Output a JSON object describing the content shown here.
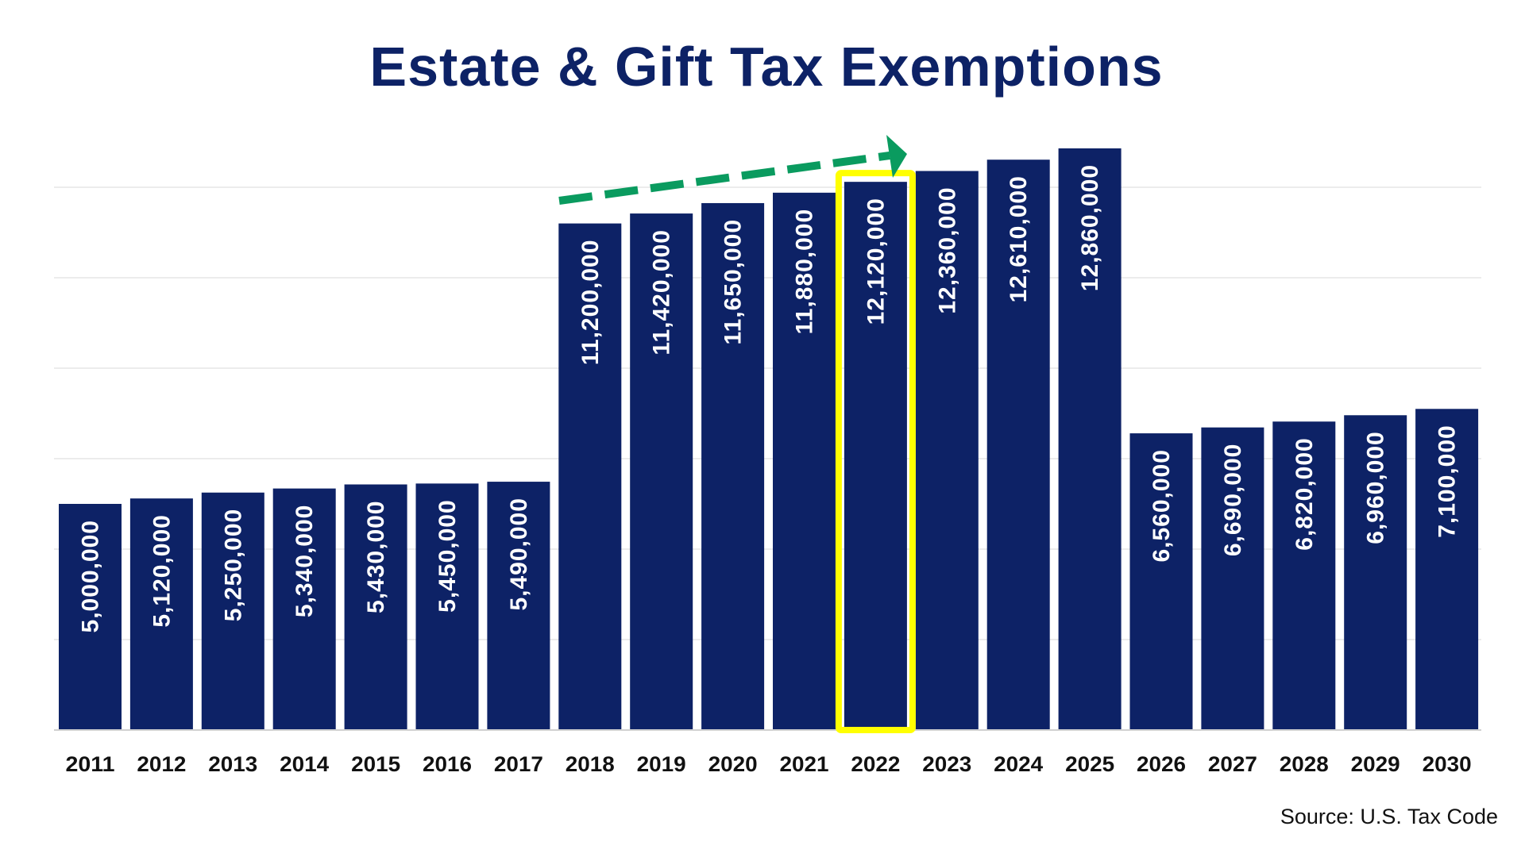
{
  "chart_data": {
    "type": "bar",
    "title": "Estate & Gift Tax Exemptions",
    "source": "Source: U.S. Tax Code",
    "categories": [
      "2011",
      "2012",
      "2013",
      "2014",
      "2015",
      "2016",
      "2017",
      "2018",
      "2019",
      "2020",
      "2021",
      "2022",
      "2023",
      "2024",
      "2025",
      "2026",
      "2027",
      "2028",
      "2029",
      "2030"
    ],
    "values": [
      5000000,
      5120000,
      5250000,
      5340000,
      5430000,
      5450000,
      5490000,
      11200000,
      11420000,
      11650000,
      11880000,
      12120000,
      12360000,
      12610000,
      12860000,
      6560000,
      6690000,
      6820000,
      6960000,
      7100000
    ],
    "data_labels": [
      "5,000,000",
      "5,120,000",
      "5,250,000",
      "5,340,000",
      "5,430,000",
      "5,450,000",
      "5,490,000",
      "11,200,000",
      "11,420,000",
      "11,650,000",
      "11,880,000",
      "12,120,000",
      "12,360,000",
      "12,610,000",
      "12,860,000",
      "6,560,000",
      "6,690,000",
      "6,820,000",
      "6,960,000",
      "7,100,000"
    ],
    "ylim": [
      0,
      12000000
    ],
    "grid": true,
    "gridline_step": 2000000,
    "highlight": "2022",
    "annotation": "dashed green upward arrow from 2018 to 2022",
    "colors": {
      "bar": "#0d2266",
      "label": "#ffffff",
      "highlight": "#ffff00",
      "arrow": "#0a9b5f",
      "title": "#0d2266",
      "grid": "#e6e6e6"
    }
  }
}
